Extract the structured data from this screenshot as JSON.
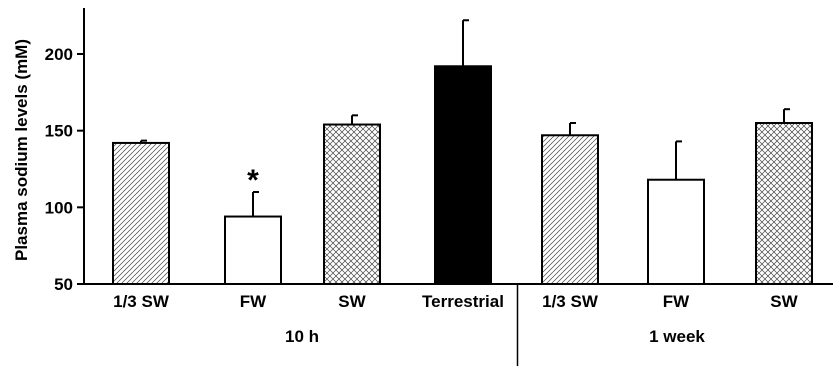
{
  "chart_data": {
    "type": "bar",
    "ylabel": "Plasma sodium levels (mM)",
    "xlabel": "",
    "ylim": [
      50,
      230
    ],
    "yticks": [
      50,
      100,
      150,
      200
    ],
    "categories": [
      "1/3 SW",
      "FW",
      "SW",
      "Terrestrial",
      "1/3 SW",
      "FW",
      "SW"
    ],
    "values": [
      142,
      94,
      154,
      192,
      147,
      118,
      155
    ],
    "errors": [
      1.5,
      16,
      6,
      30,
      8,
      25,
      9
    ],
    "fills": [
      "hatch-diag",
      "white",
      "crosshatch",
      "black",
      "hatch-diag",
      "white",
      "crosshatch"
    ],
    "annotations": [
      {
        "category_index": 1,
        "text": "*"
      }
    ],
    "groups": [
      {
        "label": "10 h",
        "category_indices": [
          0,
          1,
          2,
          3
        ]
      },
      {
        "label": "1 week",
        "category_indices": [
          4,
          5,
          6
        ]
      }
    ],
    "group_divider_after_index": 3,
    "grid": false,
    "legend": "none",
    "colors": {
      "bar_outline": "#000000",
      "black_fill": "#000000",
      "white_fill": "#ffffff"
    }
  }
}
